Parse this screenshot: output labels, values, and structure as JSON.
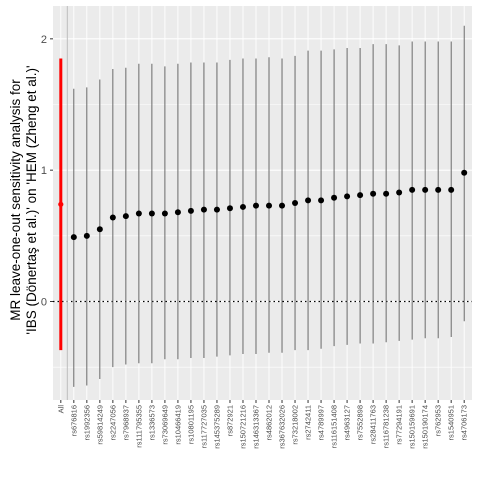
{
  "chart_data": {
    "type": "forest",
    "ylabel_lines": [
      "MR leave-one-out sensitivity analysis for",
      "'IBS (Dönertaş et al.)' on 'HEM (Zheng et al.)'"
    ],
    "xlabel": "",
    "ylim": [
      -0.75,
      2.25
    ],
    "yticks": [
      0,
      1,
      2
    ],
    "reference_line": 0,
    "colors": {
      "panel": "#ebebeb",
      "grid": "#ffffff",
      "point": "#000000",
      "errorbar": "#595959",
      "all_highlight": "#ff0000"
    },
    "categories": [
      "All",
      "rs676816",
      "rs1992356",
      "rs59814249",
      "rs2247056",
      "rs7968937",
      "rs111795355",
      "rs1336573",
      "rs73069649",
      "rs10466419",
      "rs10801195",
      "rs117727035",
      "rs145375289",
      "rs872921",
      "rs150721216",
      "rs146313367",
      "rs4862012",
      "rs367632026",
      "rs73218002",
      "rs2742411",
      "rs4789997",
      "rs116151408",
      "rs4963127",
      "rs7552898",
      "rs28411763",
      "rs116781238",
      "rs77294191",
      "rs150159691",
      "rs150190174",
      "rs762953",
      "rs1540951",
      "rs4706173"
    ],
    "estimates": [
      0.74,
      0.49,
      0.5,
      0.55,
      0.64,
      0.65,
      0.67,
      0.67,
      0.67,
      0.68,
      0.69,
      0.7,
      0.7,
      0.71,
      0.72,
      0.73,
      0.73,
      0.73,
      0.75,
      0.77,
      0.77,
      0.79,
      0.8,
      0.81,
      0.82,
      0.82,
      0.83,
      0.85,
      0.85,
      0.85,
      0.85,
      0.98
    ],
    "lower": [
      -0.37,
      -0.65,
      -0.64,
      -0.59,
      -0.5,
      -0.48,
      -0.47,
      -0.47,
      -0.44,
      -0.44,
      -0.43,
      -0.43,
      -0.42,
      -0.41,
      -0.4,
      -0.4,
      -0.39,
      -0.39,
      -0.37,
      -0.37,
      -0.36,
      -0.34,
      -0.33,
      -0.32,
      -0.32,
      -0.31,
      -0.3,
      -0.29,
      -0.28,
      -0.28,
      -0.27,
      -0.15
    ],
    "upper": [
      1.85,
      1.62,
      1.63,
      1.69,
      1.77,
      1.78,
      1.81,
      1.81,
      1.79,
      1.81,
      1.82,
      1.82,
      1.82,
      1.84,
      1.85,
      1.85,
      1.86,
      1.85,
      1.87,
      1.91,
      1.91,
      1.92,
      1.93,
      1.93,
      1.96,
      1.96,
      1.95,
      1.98,
      1.98,
      1.98,
      1.98,
      2.1
    ]
  }
}
